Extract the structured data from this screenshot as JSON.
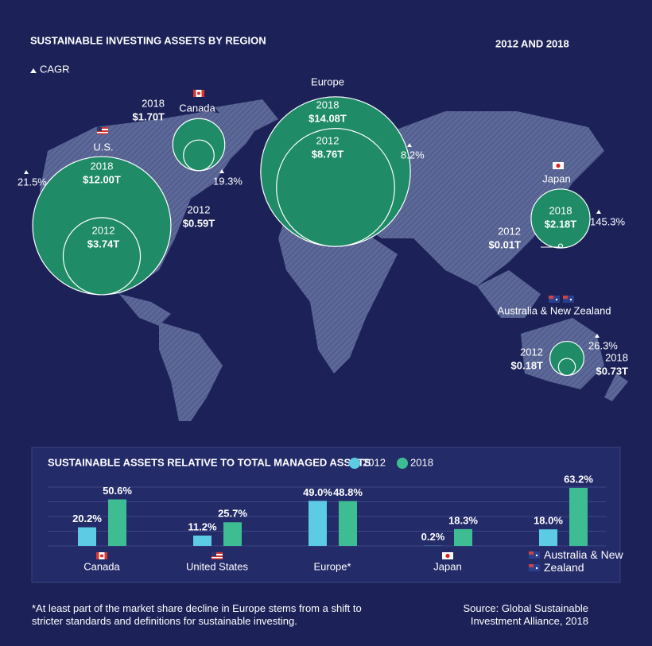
{
  "chart_data": [
    {
      "type": "bubble-map",
      "title": "SUSTAINABLE INVESTING ASSETS BY REGION",
      "subtitle": "2012 AND 2018",
      "legend_marker": "CAGR",
      "categories": [
        "U.S.",
        "Canada",
        "Europe",
        "Japan",
        "Australia & New Zealand"
      ],
      "series": [
        {
          "name": "2012",
          "color": "#1f8b67",
          "values": [
            3.74,
            0.59,
            8.76,
            0.01,
            0.18
          ],
          "value_labels": [
            "$3.74T",
            "$0.59T",
            "$8.76T",
            "$0.01T",
            "$0.18T"
          ]
        },
        {
          "name": "2018",
          "color": "#1f8b67",
          "values": [
            12.0,
            1.7,
            14.08,
            2.18,
            0.73
          ],
          "value_labels": [
            "$12.00T",
            "$1.70T",
            "$14.08T",
            "$2.18T",
            "$0.73T"
          ]
        }
      ],
      "growth": [
        21.5,
        19.3,
        8.2,
        145.3,
        26.3
      ],
      "growth_labels": [
        "21.5%",
        "19.3%",
        "8.2%",
        "145.3%",
        "26.3%"
      ]
    },
    {
      "type": "bar",
      "title": "SUSTAINABLE ASSETS RELATIVE TO TOTAL MANAGED ASSETS",
      "categories": [
        "Canada",
        "United States",
        "Europe*",
        "Japan",
        "Australia & New Zealand"
      ],
      "series": [
        {
          "name": "2012",
          "color": "#5ccbe3",
          "values": [
            20.2,
            11.2,
            49.0,
            0.2,
            18.0
          ],
          "value_labels": [
            "20.2%",
            "11.2%",
            "49.0%",
            "0.2%",
            "18.0%"
          ]
        },
        {
          "name": "2018",
          "color": "#3dbd91",
          "values": [
            50.6,
            25.7,
            48.8,
            18.3,
            63.2
          ],
          "value_labels": [
            "50.6%",
            "25.7%",
            "48.8%",
            "18.3%",
            "63.2%"
          ]
        }
      ],
      "ylim": [
        0,
        64
      ],
      "yticks": [
        0,
        16,
        32,
        48,
        64
      ],
      "grid": true
    }
  ],
  "footnote": "*At least part of the market share decline in Europe stems from a shift to stricter standards and definitions for sustainable investing.",
  "source": "Source: Global Sustainable Investment Alliance, 2018"
}
